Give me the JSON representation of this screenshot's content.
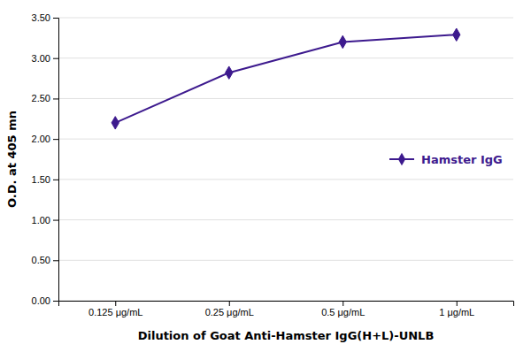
{
  "chart_data": {
    "type": "line",
    "categories": [
      "0.125 μg/mL",
      "0.25 μg/mL",
      "0.5 μg/mL",
      "1 μg/mL"
    ],
    "series": [
      {
        "name": "Hamster IgG",
        "color": "#3d1a8e",
        "marker": "diamond",
        "values": [
          2.2,
          2.82,
          3.2,
          3.29
        ]
      }
    ],
    "xlabel": "Dilution of Goat Anti-Hamster IgG(H+L)-UNLB",
    "ylabel": "O.D. at 405 mn",
    "ylim": [
      0.0,
      3.5
    ],
    "yticks": [
      {
        "value": 0.0,
        "label": "0.00"
      },
      {
        "value": 0.5,
        "label": "0.50"
      },
      {
        "value": 1.0,
        "label": "1.00"
      },
      {
        "value": 1.5,
        "label": "1.50"
      },
      {
        "value": 2.0,
        "label": "2.00"
      },
      {
        "value": 2.5,
        "label": "2.50"
      },
      {
        "value": 3.0,
        "label": "3.00"
      },
      {
        "value": 3.5,
        "label": "3.50"
      }
    ],
    "grid": true,
    "legend": "right"
  }
}
